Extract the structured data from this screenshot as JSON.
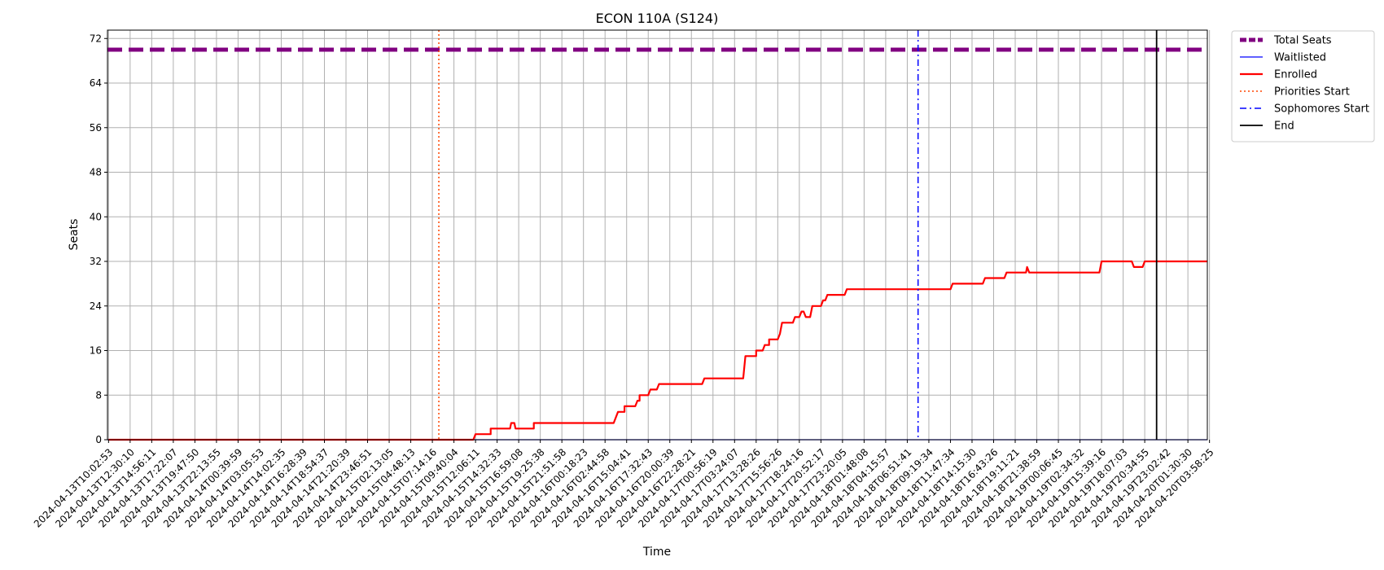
{
  "chart_data": {
    "type": "line",
    "title": "ECON 110A (S124)",
    "xlabel": "Time",
    "ylabel": "Seats",
    "ylim": [
      0,
      73.5
    ],
    "yticks": [
      0,
      8,
      16,
      24,
      32,
      40,
      48,
      56,
      64,
      72
    ],
    "grid": true,
    "legend_position": "outside-top-right",
    "x_categories": [
      "2024-04-13T10:02:53",
      "2024-04-13T12:30:10",
      "2024-04-13T14:56:11",
      "2024-04-13T17:22:07",
      "2024-04-13T19:47:50",
      "2024-04-13T22:13:55",
      "2024-04-14T00:39:59",
      "2024-04-14T03:05:53",
      "2024-04-14T14:02:35",
      "2024-04-14T16:28:39",
      "2024-04-14T18:54:37",
      "2024-04-14T21:20:39",
      "2024-04-14T23:46:51",
      "2024-04-15T02:13:05",
      "2024-04-15T04:48:13",
      "2024-04-15T07:14:16",
      "2024-04-15T09:40:04",
      "2024-04-15T12:06:11",
      "2024-04-15T14:32:33",
      "2024-04-15T16:59:08",
      "2024-04-15T19:25:38",
      "2024-04-15T21:51:58",
      "2024-04-16T00:18:23",
      "2024-04-16T02:44:58",
      "2024-04-16T15:04:41",
      "2024-04-16T17:32:43",
      "2024-04-16T20:00:39",
      "2024-04-16T22:28:21",
      "2024-04-17T00:56:19",
      "2024-04-17T03:24:07",
      "2024-04-17T13:28:26",
      "2024-04-17T15:56:26",
      "2024-04-17T18:24:16",
      "2024-04-17T20:52:17",
      "2024-04-17T23:20:05",
      "2024-04-18T01:48:08",
      "2024-04-18T04:15:57",
      "2024-04-18T06:51:41",
      "2024-04-18T09:19:34",
      "2024-04-18T11:47:34",
      "2024-04-18T14:15:30",
      "2024-04-18T16:43:26",
      "2024-04-18T19:11:21",
      "2024-04-18T21:38:59",
      "2024-04-19T00:06:45",
      "2024-04-19T02:34:32",
      "2024-04-19T15:39:16",
      "2024-04-19T18:07:03",
      "2024-04-19T20:34:55",
      "2024-04-19T23:02:42",
      "2024-04-20T01:30:30",
      "2024-04-20T03:58:25"
    ],
    "x_range_index": [
      -0.05,
      50.9
    ],
    "series": [
      {
        "name": "Total Seats",
        "color": "#800080",
        "style": "dashed-thick",
        "points": [
          [
            -0.05,
            70
          ],
          [
            50.9,
            70
          ]
        ]
      },
      {
        "name": "Waitlisted",
        "color": "#0000ff",
        "style": "solid-thin",
        "points": [
          [
            -0.05,
            0
          ],
          [
            50.9,
            0
          ]
        ]
      },
      {
        "name": "Enrolled",
        "color": "#ff0000",
        "style": "solid-thick",
        "points": [
          [
            0,
            0
          ],
          [
            16.9,
            0
          ],
          [
            17.0,
            1
          ],
          [
            17.7,
            1
          ],
          [
            17.7,
            2
          ],
          [
            18.6,
            2
          ],
          [
            18.65,
            3
          ],
          [
            18.8,
            3
          ],
          [
            18.85,
            2
          ],
          [
            19.7,
            2
          ],
          [
            19.7,
            3
          ],
          [
            23.4,
            3
          ],
          [
            23.6,
            5
          ],
          [
            23.9,
            5
          ],
          [
            23.9,
            6
          ],
          [
            24.4,
            6
          ],
          [
            24.5,
            7
          ],
          [
            24.6,
            7
          ],
          [
            24.6,
            8
          ],
          [
            25.0,
            8
          ],
          [
            25.1,
            9
          ],
          [
            25.4,
            9
          ],
          [
            25.5,
            10
          ],
          [
            27.5,
            10
          ],
          [
            27.6,
            11
          ],
          [
            29.4,
            11
          ],
          [
            29.5,
            15
          ],
          [
            30.0,
            15
          ],
          [
            30.0,
            16
          ],
          [
            30.3,
            16
          ],
          [
            30.4,
            17
          ],
          [
            30.6,
            17
          ],
          [
            30.6,
            18
          ],
          [
            31.0,
            18
          ],
          [
            31.1,
            19
          ],
          [
            31.2,
            21
          ],
          [
            31.7,
            21
          ],
          [
            31.8,
            22
          ],
          [
            32.0,
            22
          ],
          [
            32.1,
            23
          ],
          [
            32.2,
            23
          ],
          [
            32.3,
            22
          ],
          [
            32.5,
            22
          ],
          [
            32.6,
            24
          ],
          [
            33.0,
            24
          ],
          [
            33.1,
            25
          ],
          [
            33.2,
            25
          ],
          [
            33.3,
            26
          ],
          [
            34.1,
            26
          ],
          [
            34.2,
            27
          ],
          [
            39.0,
            27
          ],
          [
            39.1,
            28
          ],
          [
            40.5,
            28
          ],
          [
            40.6,
            29
          ],
          [
            41.5,
            29
          ],
          [
            41.6,
            30
          ],
          [
            42.5,
            30
          ],
          [
            42.55,
            31
          ],
          [
            42.65,
            30
          ],
          [
            45.9,
            30
          ],
          [
            46.0,
            32
          ],
          [
            47.4,
            32
          ],
          [
            47.5,
            31
          ],
          [
            47.9,
            31
          ],
          [
            48.0,
            32
          ],
          [
            50.9,
            32
          ]
        ]
      },
      {
        "name": "Priorities Start",
        "color": "#ff4500",
        "style": "dotted-vertical",
        "x_index": 15.3
      },
      {
        "name": "Sophomores Start",
        "color": "#0000ff",
        "style": "dashdot-vertical",
        "x_index": 37.5
      },
      {
        "name": "End",
        "color": "#000000",
        "style": "solid-vertical",
        "x_index": 48.55
      }
    ]
  }
}
